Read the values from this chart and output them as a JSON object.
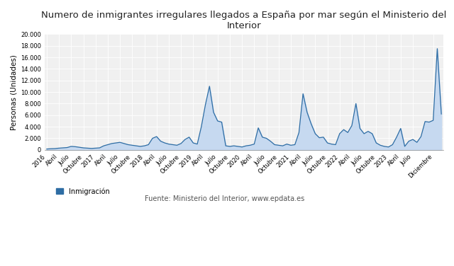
{
  "title": "Numero de inmigrantes irregulares llegados a España por mar según el Ministerio del\nInterior",
  "ylabel": "Personas (Unidades)",
  "line_color": "#2e6da4",
  "fill_color": "#c6d9f0",
  "background_color": "#f0f0f0",
  "ylim": [
    0,
    20000
  ],
  "yticks": [
    0,
    2000,
    4000,
    6000,
    8000,
    10000,
    12000,
    14000,
    16000,
    18000,
    20000
  ],
  "legend_label": "Inmigración",
  "source_text": "Fuente: Ministerio del Interior, www.epdata.es",
  "xtick_labels": [
    "2016",
    "Abril",
    "Julio",
    "Octubre",
    "2017",
    "Abril",
    "Julio",
    "Octubre",
    "2018",
    "Abril",
    "Julio",
    "Octubre",
    "2019",
    "Abril",
    "Julio",
    "Octubre",
    "2020",
    "Abril",
    "Julio",
    "Octubre",
    "2021",
    "Abril",
    "Julio",
    "Octubre",
    "2022",
    "Abril",
    "Julio",
    "Octubre",
    "2023",
    "Abril",
    "Julio",
    "Diciembre"
  ],
  "xtick_positions": [
    0,
    3,
    6,
    9,
    12,
    15,
    18,
    21,
    24,
    27,
    30,
    33,
    36,
    39,
    42,
    45,
    48,
    51,
    54,
    57,
    60,
    63,
    66,
    69,
    72,
    75,
    78,
    81,
    84,
    87,
    90,
    95
  ],
  "values": [
    150,
    200,
    220,
    300,
    350,
    400,
    600,
    550,
    450,
    350,
    300,
    250,
    300,
    350,
    700,
    900,
    1100,
    1200,
    1300,
    1100,
    900,
    800,
    700,
    600,
    700,
    900,
    2000,
    2300,
    1500,
    1200,
    1000,
    900,
    800,
    1100,
    1800,
    2200,
    1200,
    1000,
    4000,
    7800,
    11000,
    6500,
    5000,
    4800,
    700,
    600,
    700,
    600,
    500,
    700,
    800,
    1000,
    3800,
    2200,
    2000,
    1500,
    900,
    800,
    700,
    1000,
    800,
    900,
    3000,
    9700,
    6500,
    4500,
    2800,
    2100,
    2200,
    1200,
    1000,
    900,
    2800,
    3500,
    3000,
    4200,
    8000,
    3700,
    2800,
    3200,
    2800,
    1200,
    800,
    600,
    500,
    900,
    2200,
    3700,
    600,
    1500,
    1800,
    1300,
    2300,
    4900,
    4800,
    5100,
    17500,
    6200
  ],
  "title_fontsize": 9.5,
  "tick_fontsize": 6,
  "ylabel_fontsize": 7.5
}
